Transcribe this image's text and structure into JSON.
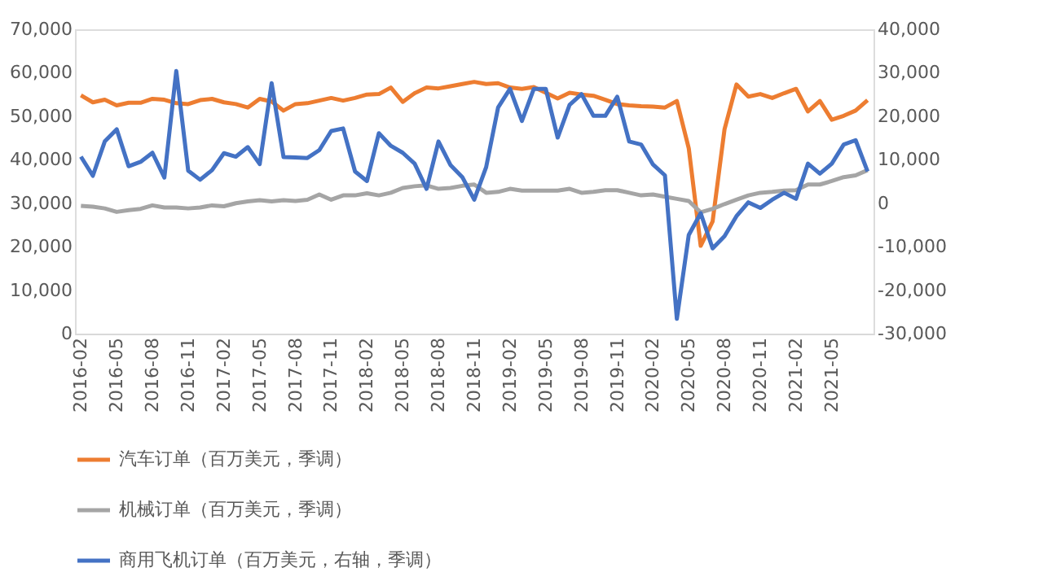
{
  "chart_data": {
    "type": "line",
    "categories": [
      "2016-02",
      null,
      null,
      "2016-05",
      null,
      null,
      "2016-08",
      null,
      null,
      "2016-11",
      null,
      null,
      "2017-02",
      null,
      null,
      "2017-05",
      null,
      null,
      "2017-08",
      null,
      null,
      "2017-11",
      null,
      null,
      "2018-02",
      null,
      null,
      "2018-05",
      null,
      null,
      "2018-08",
      null,
      null,
      "2018-11",
      null,
      null,
      "2019-02",
      null,
      null,
      "2019-05",
      null,
      null,
      "2019-08",
      null,
      null,
      "2019-11",
      null,
      null,
      "2020-02",
      null,
      null,
      "2020-05",
      null,
      null,
      "2020-08",
      null,
      null,
      "2020-11",
      null,
      null,
      "2021-02",
      null,
      null,
      "2021-05",
      null,
      null,
      null
    ],
    "series": [
      {
        "name": "汽车订单（百万美元，季调）",
        "color": "#ed7d31",
        "values": [
          54800,
          53200,
          53800,
          52500,
          53100,
          53100,
          54000,
          53800,
          53000,
          52800,
          53700,
          54000,
          53200,
          52800,
          52000,
          54000,
          53400,
          51300,
          52800,
          53000,
          53600,
          54200,
          53600,
          54200,
          55000,
          55100,
          56600,
          53300,
          55300,
          56600,
          56400,
          56900,
          57400,
          57900,
          57400,
          57600,
          56600,
          56300,
          56700,
          55400,
          54100,
          55400,
          55000,
          54700,
          53800,
          52800,
          52500,
          52300,
          52200,
          52000,
          53500,
          42600,
          20200,
          25800,
          47000,
          57300,
          54500,
          55100,
          54200,
          55300,
          56300,
          51100,
          53500,
          49200,
          50100,
          51300,
          53700
        ]
      },
      {
        "name": "机械订单（百万美元，季调）",
        "color": "#a5a5a5",
        "values": [
          29400,
          29200,
          28800,
          28000,
          28400,
          28700,
          29500,
          29000,
          29000,
          28800,
          29000,
          29500,
          29300,
          30000,
          30400,
          30700,
          30400,
          30700,
          30500,
          30800,
          32000,
          30800,
          31800,
          31800,
          32300,
          31800,
          32400,
          33500,
          33900,
          34100,
          33300,
          33500,
          34000,
          34300,
          32400,
          32600,
          33300,
          32900,
          32900,
          32900,
          32900,
          33300,
          32400,
          32600,
          33000,
          33000,
          32400,
          31800,
          32000,
          31500,
          31000,
          30500,
          27900,
          28700,
          29800,
          30800,
          31800,
          32400,
          32600,
          32900,
          33000,
          34300,
          34300,
          35100,
          36000,
          36400,
          37600
        ]
      },
      {
        "name": "商用飞机订单（百万美元，右轴，季调）",
        "color": "#4472c4",
        "axis": "y2",
        "values": [
          10700,
          6300,
          14200,
          17000,
          8500,
          9500,
          11600,
          5900,
          30400,
          7500,
          5400,
          7600,
          11500,
          10700,
          12900,
          9000,
          27600,
          10600,
          10500,
          10400,
          12200,
          16600,
          17200,
          7300,
          5100,
          16100,
          13200,
          11600,
          9100,
          3300,
          14200,
          8800,
          6000,
          800,
          8300,
          22000,
          26300,
          18900,
          26300,
          26300,
          15100,
          22600,
          25100,
          20100,
          20100,
          24500,
          14200,
          13500,
          8900,
          6400,
          -26600,
          -7300,
          -2300,
          -10400,
          -7600,
          -3000,
          200,
          -1100,
          800,
          2400,
          1000,
          9100,
          6800,
          9100,
          13500,
          14500,
          7300
        ]
      }
    ],
    "ylim": [
      0,
      70000
    ],
    "yticks": [
      0,
      {
        "value": 10000,
        "label": "10,000"
      },
      {
        "value": 20000,
        "label": "20,000"
      },
      {
        "value": 30000,
        "label": "30,000"
      },
      {
        "value": 40000,
        "label": "40,000"
      },
      {
        "value": 50000,
        "label": "50,000"
      },
      {
        "value": 60000,
        "label": "60,000"
      },
      {
        "value": 70000,
        "label": "70,000"
      }
    ],
    "y2lim": [
      -30000,
      40000
    ],
    "y2ticks": [
      {
        "value": -30000,
        "label": "-30,000"
      },
      {
        "value": -20000,
        "label": "-20,000"
      },
      {
        "value": -10000,
        "label": "-10,000"
      },
      0,
      {
        "value": 10000,
        "label": "10,000"
      },
      {
        "value": 20000,
        "label": "20,000"
      },
      {
        "value": 30000,
        "label": "30,000"
      },
      {
        "value": 40000,
        "label": "40,000"
      }
    ],
    "grid": false,
    "legend": "bottom",
    "marker": "none",
    "line_style": "solid"
  }
}
